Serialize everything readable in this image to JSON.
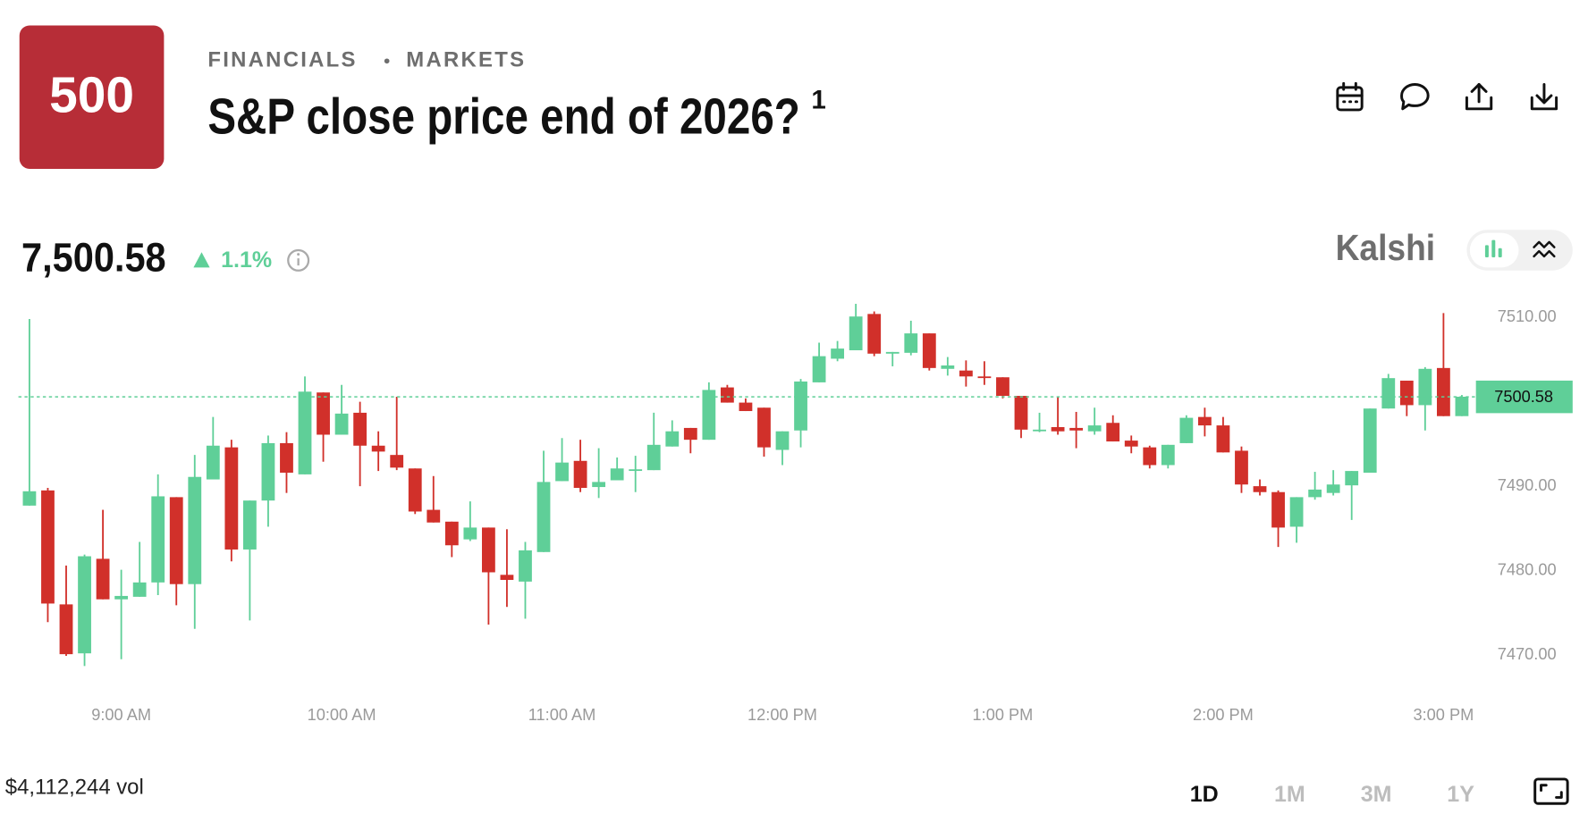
{
  "header": {
    "logo": "500",
    "category": "FINANCIALS",
    "section": "MARKETS",
    "title": "S&P close price end of 2026?",
    "footnote": "1",
    "price": "7,500.58",
    "change": "1.1%",
    "brand": "Kalshi"
  },
  "footer": {
    "volume": "$4,112,244 vol",
    "ranges": [
      "1D",
      "1M",
      "3M",
      "1Y"
    ],
    "selected_range": "1D"
  },
  "chart_data": {
    "type": "candlestick",
    "up_color": "#5fcf98",
    "down_color": "#d1302a",
    "x": [
      515,
      520,
      525,
      530,
      535,
      540,
      545,
      550,
      555,
      560,
      565,
      570,
      575,
      580,
      585,
      590,
      595,
      600,
      605,
      610,
      615,
      620,
      625,
      630,
      635,
      640,
      645,
      650,
      655,
      660,
      665,
      670,
      675,
      680,
      685,
      690,
      695,
      700,
      705,
      710,
      715,
      720,
      725,
      730,
      735,
      740,
      745,
      750,
      755,
      760,
      765,
      770,
      775,
      780,
      785,
      790,
      795,
      800,
      805,
      810,
      815,
      820,
      825,
      830,
      835,
      840,
      845,
      850,
      855,
      860,
      865,
      870,
      875,
      880,
      885,
      890,
      895,
      900,
      905
    ],
    "open": [
      7487.7,
      7489.5,
      7476.0,
      7470.2,
      7481.4,
      7476.6,
      7476.9,
      7478.6,
      7488.7,
      7478.4,
      7490.8,
      7494.6,
      7482.5,
      7488.3,
      7495.1,
      7491.4,
      7501.1,
      7496.1,
      7498.7,
      7494.8,
      7493.7,
      7492.1,
      7487.2,
      7485.8,
      7483.7,
      7485.1,
      7479.5,
      7478.7,
      7482.2,
      7490.6,
      7493.0,
      7489.9,
      7490.7,
      7491.9,
      7491.9,
      7494.7,
      7496.9,
      7495.5,
      7501.7,
      7499.9,
      7499.3,
      7494.3,
      7496.6,
      7502.3,
      7505.1,
      7506.1,
      7510.4,
      7505.7,
      7505.8,
      7508.1,
      7503.9,
      7503.7,
      7503.0,
      7502.9,
      7500.7,
      7496.6,
      7497.0,
      7496.9,
      7496.5,
      7497.5,
      7495.4,
      7494.6,
      7492.5,
      7495.1,
      7498.2,
      7497.2,
      7494.2,
      7490.0,
      7489.3,
      7485.2,
      7488.7,
      7489.2,
      7490.1,
      7491.6,
      7499.2,
      7502.5,
      7499.6,
      7504.0,
      7498.3
    ],
    "high": [
      7509.8,
      7489.8,
      7480.6,
      7481.9,
      7487.2,
      7480.1,
      7483.4,
      7491.4,
      7488.7,
      7493.7,
      7498.2,
      7495.5,
      7488.3,
      7496.0,
      7496.4,
      7503.0,
      7501.1,
      7502.0,
      7500.0,
      7496.5,
      7500.6,
      7492.1,
      7491.2,
      7485.8,
      7488.2,
      7485.1,
      7484.9,
      7483.4,
      7494.2,
      7495.7,
      7495.5,
      7494.5,
      7493.4,
      7493.6,
      7498.7,
      7497.8,
      7496.9,
      7502.3,
      7502.0,
      7500.4,
      7499.3,
      7496.5,
      7502.7,
      7507.0,
      7507.2,
      7511.6,
      7510.7,
      7505.9,
      7509.6,
      7508.1,
      7505.3,
      7504.9,
      7504.8,
      7502.9,
      7500.7,
      7498.7,
      7500.6,
      7498.8,
      7499.3,
      7498.4,
      7496.0,
      7494.8,
      7494.9,
      7498.4,
      7499.3,
      7498.2,
      7494.7,
      7490.8,
      7489.5,
      7488.7,
      7491.7,
      7491.9,
      7491.8,
      7499.2,
      7503.3,
      7502.5,
      7504.1,
      7510.5,
      7500.8
    ],
    "low": [
      7487.7,
      7473.9,
      7469.9,
      7468.7,
      7476.6,
      7469.5,
      7476.9,
      7477.1,
      7475.9,
      7473.1,
      7490.8,
      7481.1,
      7474.1,
      7485.2,
      7489.2,
      7491.4,
      7492.9,
      7496.1,
      7490.0,
      7491.8,
      7491.9,
      7486.7,
      7485.7,
      7481.6,
      7483.5,
      7473.6,
      7475.7,
      7474.3,
      7482.2,
      7490.6,
      7489.3,
      7488.6,
      7490.7,
      7489.3,
      7491.9,
      7494.7,
      7493.9,
      7495.5,
      7499.9,
      7498.9,
      7493.5,
      7492.5,
      7494.6,
      7502.3,
      7504.8,
      7506.1,
      7505.4,
      7504.2,
      7505.5,
      7503.7,
      7503.1,
      7501.8,
      7502.0,
      7500.4,
      7495.7,
      7496.4,
      7496.1,
      7494.5,
      7496.1,
      7495.3,
      7493.9,
      7492.1,
      7492.1,
      7495.1,
      7495.9,
      7494.0,
      7489.2,
      7488.9,
      7482.8,
      7483.3,
      7488.4,
      7488.9,
      7486.0,
      7491.6,
      7499.2,
      7498.3,
      7496.6,
      7498.3,
      7498.3
    ],
    "close": [
      7489.4,
      7476.1,
      7470.1,
      7481.7,
      7476.6,
      7477.0,
      7478.6,
      7488.8,
      7478.4,
      7491.1,
      7494.8,
      7482.5,
      7488.3,
      7495.1,
      7491.6,
      7501.2,
      7496.1,
      7498.6,
      7494.8,
      7494.1,
      7492.2,
      7487.0,
      7485.7,
      7483.0,
      7485.1,
      7479.8,
      7478.9,
      7482.4,
      7490.5,
      7492.8,
      7489.8,
      7490.5,
      7492.1,
      7492.0,
      7494.9,
      7496.5,
      7495.5,
      7501.4,
      7499.9,
      7498.9,
      7494.6,
      7496.5,
      7502.4,
      7505.4,
      7506.3,
      7510.1,
      7505.7,
      7505.9,
      7508.1,
      7504.0,
      7504.3,
      7503.0,
      7502.9,
      7500.7,
      7496.7,
      7496.7,
      7496.5,
      7496.6,
      7497.2,
      7495.3,
      7494.7,
      7492.5,
      7494.9,
      7498.1,
      7497.2,
      7494.0,
      7490.2,
      7489.3,
      7485.1,
      7488.7,
      7489.6,
      7490.2,
      7491.8,
      7499.2,
      7502.8,
      7499.6,
      7503.9,
      7498.3,
      7500.6
    ],
    "xlim": [
      512,
      908
    ],
    "xticks": [
      {
        "value": 540,
        "label": "9:00 AM"
      },
      {
        "value": 600,
        "label": "10:00 AM"
      },
      {
        "value": 660,
        "label": "11:00 AM"
      },
      {
        "value": 720,
        "label": "12:00 PM"
      },
      {
        "value": 780,
        "label": "1:00 PM"
      },
      {
        "value": 840,
        "label": "2:00 PM"
      },
      {
        "value": 900,
        "label": "3:00 PM"
      }
    ],
    "ylim": [
      7467,
      7512
    ],
    "yticks": [
      {
        "value": 7470,
        "label": "7470.00"
      },
      {
        "value": 7480,
        "label": "7480.00"
      },
      {
        "value": 7490,
        "label": "7490.00"
      },
      {
        "value": 7510,
        "label": "7510.00"
      }
    ],
    "last_price": 7500.58,
    "grid": false
  }
}
